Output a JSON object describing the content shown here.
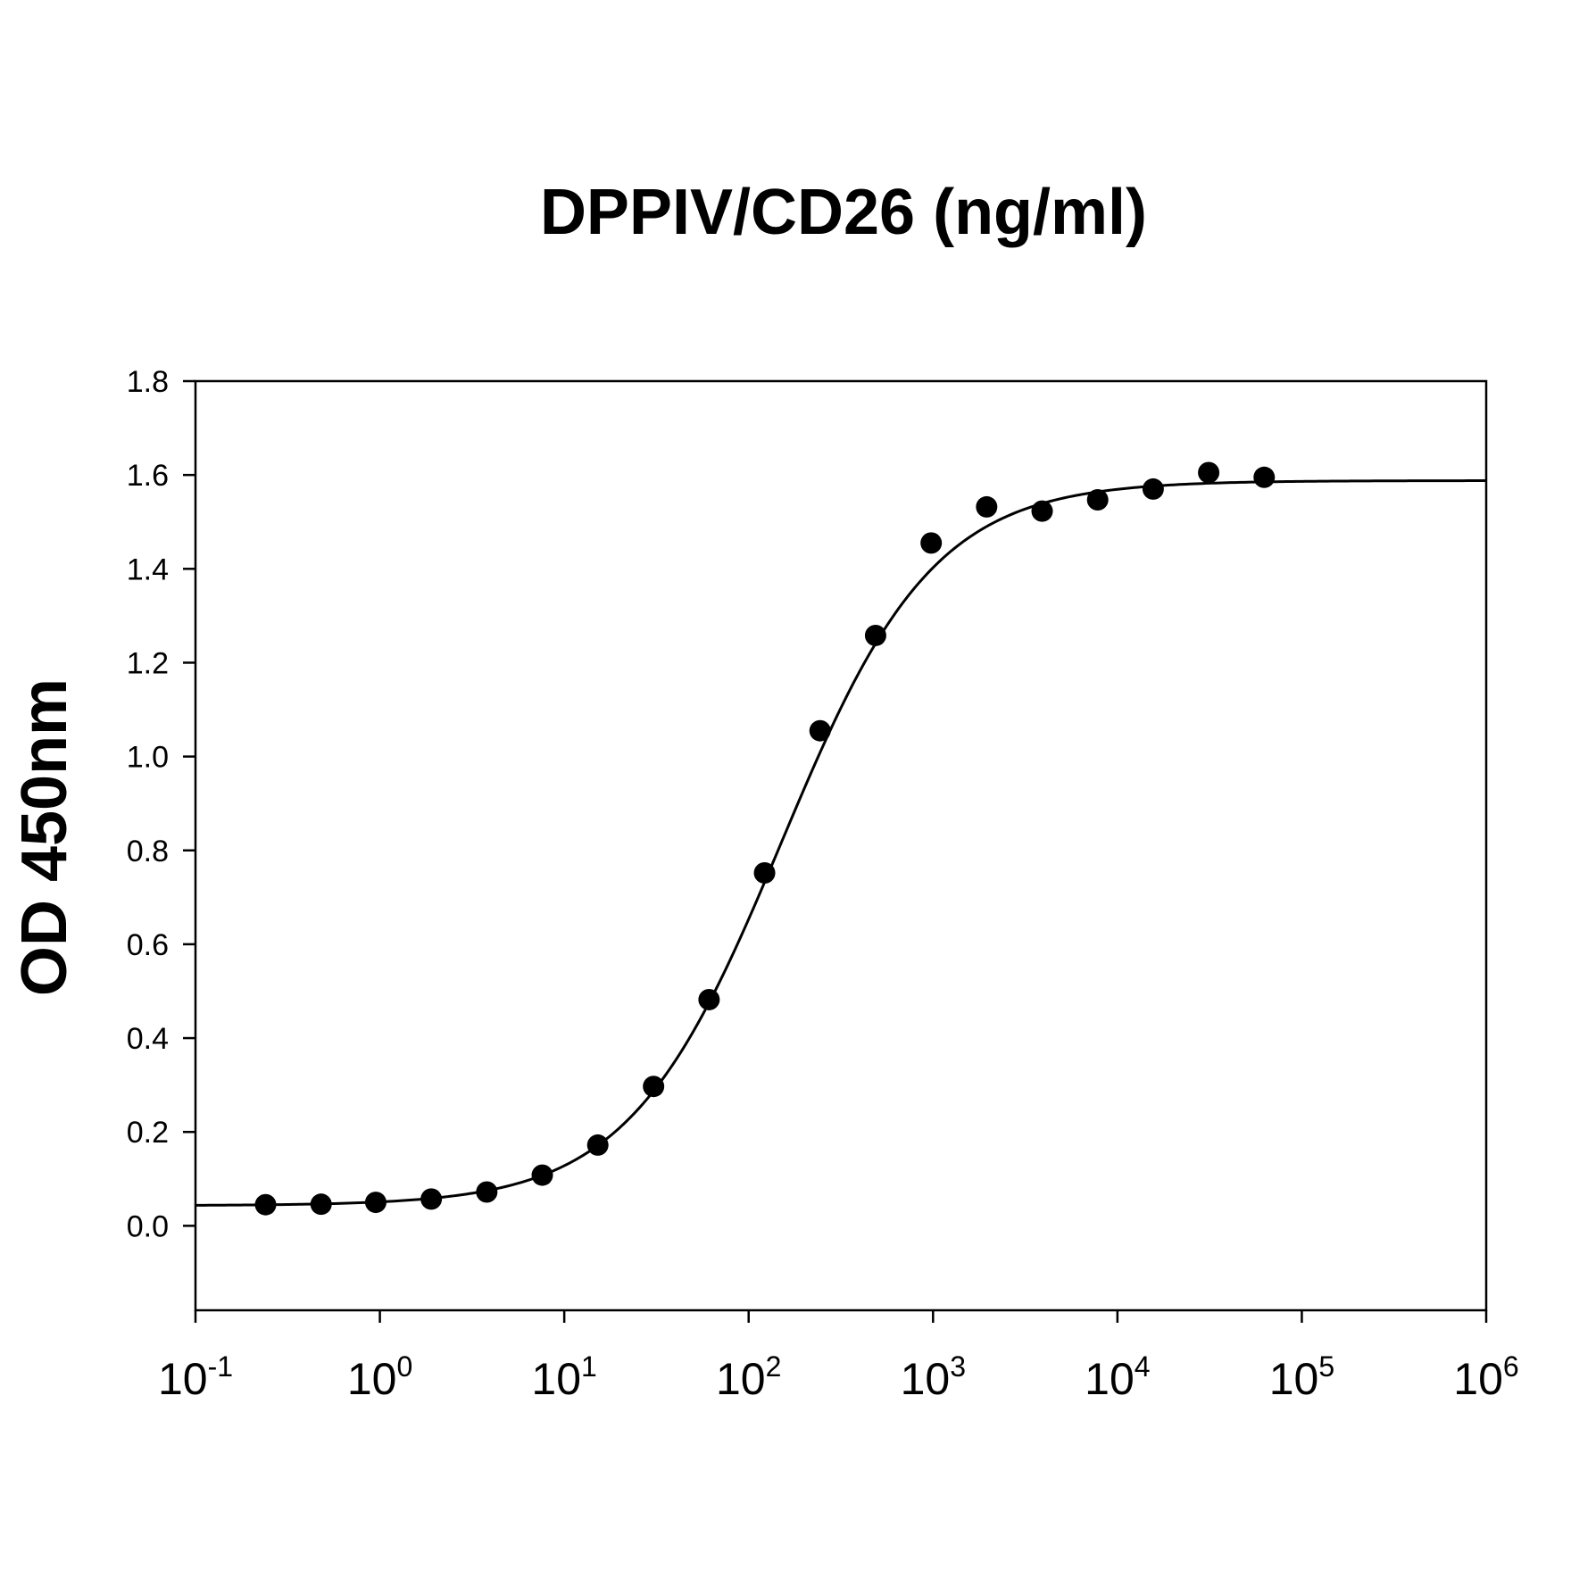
{
  "chart_data": {
    "type": "scatter",
    "title": "DPPIV/CD26 (ng/ml)",
    "ylabel": "OD 450nm",
    "xlabel": "",
    "xscale": "log",
    "xlim": [
      0.1,
      1000000
    ],
    "ylim": [
      -0.18,
      1.8
    ],
    "grid": false,
    "legend": "none",
    "colors": {
      "points": "#000000",
      "curve": "#000000",
      "frame": "#000000"
    },
    "yticks": [
      {
        "value": 0.0,
        "label": "0.0"
      },
      {
        "value": 0.2,
        "label": "0.2"
      },
      {
        "value": 0.4,
        "label": "0.4"
      },
      {
        "value": 0.6,
        "label": "0.6"
      },
      {
        "value": 0.8,
        "label": "0.8"
      },
      {
        "value": 1.0,
        "label": "1.0"
      },
      {
        "value": 1.2,
        "label": "1.2"
      },
      {
        "value": 1.4,
        "label": "1.4"
      },
      {
        "value": 1.6,
        "label": "1.6"
      },
      {
        "value": 1.8,
        "label": "1.8"
      }
    ],
    "xticks": [
      {
        "value": 0.1,
        "base": "10",
        "exp": "-1"
      },
      {
        "value": 1,
        "base": "10",
        "exp": "0"
      },
      {
        "value": 10,
        "base": "10",
        "exp": "1"
      },
      {
        "value": 100,
        "base": "10",
        "exp": "2"
      },
      {
        "value": 1000,
        "base": "10",
        "exp": "3"
      },
      {
        "value": 10000,
        "base": "10",
        "exp": "4"
      },
      {
        "value": 100000,
        "base": "10",
        "exp": "5"
      },
      {
        "value": 1000000,
        "base": "10",
        "exp": "6"
      }
    ],
    "points": [
      {
        "x": 0.24,
        "y": 0.045
      },
      {
        "x": 0.48,
        "y": 0.046
      },
      {
        "x": 0.95,
        "y": 0.05
      },
      {
        "x": 1.9,
        "y": 0.057
      },
      {
        "x": 3.8,
        "y": 0.072
      },
      {
        "x": 7.6,
        "y": 0.108
      },
      {
        "x": 15.2,
        "y": 0.172
      },
      {
        "x": 30.5,
        "y": 0.297
      },
      {
        "x": 61,
        "y": 0.482
      },
      {
        "x": 122,
        "y": 0.752
      },
      {
        "x": 244,
        "y": 1.055
      },
      {
        "x": 488,
        "y": 1.258
      },
      {
        "x": 977,
        "y": 1.455
      },
      {
        "x": 1953,
        "y": 1.532
      },
      {
        "x": 3906,
        "y": 1.523
      },
      {
        "x": 7812,
        "y": 1.547
      },
      {
        "x": 15625,
        "y": 1.57
      },
      {
        "x": 31250,
        "y": 1.605
      },
      {
        "x": 62500,
        "y": 1.595
      }
    ],
    "fit": {
      "model": "4PL",
      "bottom": 0.043,
      "top": 1.588,
      "ec50": 150,
      "hill": 1.05
    }
  }
}
